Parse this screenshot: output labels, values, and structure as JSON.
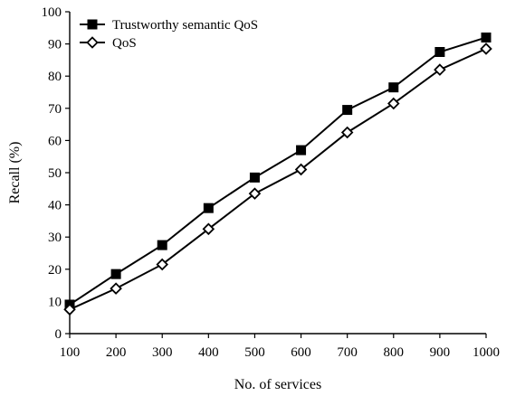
{
  "chart_data": {
    "type": "line",
    "xlabel": "No. of services",
    "ylabel": "Recall (%)",
    "x": [
      100,
      200,
      300,
      400,
      500,
      600,
      700,
      800,
      900,
      1000
    ],
    "xlim": [
      100,
      1000
    ],
    "ylim": [
      0,
      100
    ],
    "x_ticks": [
      "100",
      "200",
      "300",
      "400",
      "500",
      "600",
      "700",
      "800",
      "900",
      "1000"
    ],
    "y_ticks": [
      "0",
      "10",
      "20",
      "30",
      "40",
      "50",
      "60",
      "70",
      "80",
      "90",
      "100"
    ],
    "grid": false,
    "legend_position": "top-left",
    "series": [
      {
        "name": "Trustworthy semantic QoS",
        "marker": "filled-square",
        "color": "#000000",
        "values": [
          9,
          18.5,
          27.5,
          39,
          48.5,
          57,
          69.5,
          76.5,
          87.5,
          92
        ]
      },
      {
        "name": "QoS",
        "marker": "open-diamond",
        "color": "#000000",
        "values": [
          7.5,
          14,
          21.5,
          32.5,
          43.5,
          51,
          62.5,
          71.5,
          82,
          88.5
        ]
      }
    ]
  }
}
